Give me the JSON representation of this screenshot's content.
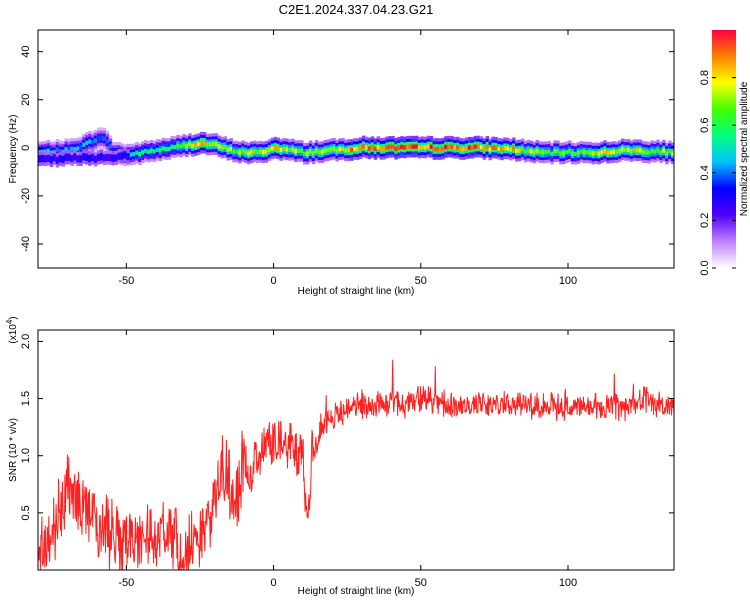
{
  "chart_data": [
    {
      "type": "heatmap",
      "title": "C2E1.2024.337.04.23.G21",
      "xlabel": "Height of straight line (km)",
      "ylabel": "Frequency (Hz)",
      "xlim": [
        -80,
        136
      ],
      "ylim": [
        -50,
        49
      ],
      "xticks": [
        -50,
        0,
        50,
        100
      ],
      "yticks": [
        -40,
        -20,
        0,
        20,
        40
      ],
      "colorbar": {
        "label": "Normalized spectral amplitude",
        "range": [
          0,
          1
        ],
        "ticks": [
          "0.0",
          "0.2",
          "0.4",
          "0.6",
          "0.8"
        ],
        "colors": [
          "#ffffff",
          "#c080ff",
          "#5000ff",
          "#0000ff",
          "#00c0ff",
          "#00ff80",
          "#40ff00",
          "#ffff00",
          "#ff8000",
          "#ff0040"
        ]
      },
      "ridge": {
        "x": [
          -80,
          -70,
          -65,
          -60,
          -57,
          -55,
          -50,
          -45,
          -40,
          -35,
          -30,
          -25,
          -20,
          -15,
          -10,
          -5,
          0,
          5,
          10,
          20,
          30,
          40,
          50,
          60,
          70,
          80,
          90,
          100,
          110,
          120,
          136
        ],
        "frequency": [
          -2,
          -1,
          1,
          4,
          3,
          -2,
          -3,
          -2,
          -1,
          0,
          1,
          2,
          1,
          -1,
          -2,
          -2,
          0,
          -1,
          -2,
          -1,
          0,
          0,
          0,
          0,
          0,
          -0.5,
          -2,
          -2,
          -2,
          -1,
          -2
        ],
        "amplitude": [
          0.5,
          0.45,
          0.45,
          0.4,
          0.4,
          0.45,
          0.55,
          0.55,
          0.6,
          0.6,
          0.75,
          0.8,
          0.7,
          0.7,
          0.75,
          0.75,
          0.8,
          0.75,
          0.7,
          0.8,
          0.9,
          0.95,
          0.95,
          0.95,
          0.9,
          0.85,
          0.65,
          0.65,
          0.75,
          0.8,
          0.7
        ]
      }
    },
    {
      "type": "line",
      "xlabel": "Height of straight line (km)",
      "ylabel": "SNR (10 * v/v)",
      "scale_label": "(x10",
      "scale_exp": "4",
      "scale_close": ")",
      "xlim": [
        -80,
        136
      ],
      "ylim": [
        0,
        2.1
      ],
      "xticks": [
        -50,
        0,
        50,
        100
      ],
      "yticks": [
        "0.5",
        "1.0",
        "1.5",
        "2.0"
      ],
      "color": "#ff2020",
      "series": [
        {
          "x": [
            -80,
            -78,
            -75,
            -72,
            -70,
            -68,
            -65,
            -62,
            -60,
            -57,
            -55,
            -52,
            -50,
            -47,
            -45,
            -42,
            -40,
            -37,
            -35,
            -32,
            -30,
            -27,
            -25,
            -22,
            -20,
            -18,
            -16,
            -14,
            -12,
            -10,
            -8,
            -6,
            -4,
            -2,
            0,
            2,
            4,
            6,
            8,
            10,
            11,
            12,
            13,
            14,
            16,
            18,
            20,
            25,
            30,
            35,
            40,
            45,
            50,
            60,
            70,
            80,
            90,
            100,
            110,
            120,
            125,
            128,
            130,
            133,
            136
          ],
          "y": [
            0.05,
            0.2,
            0.3,
            0.55,
            0.8,
            0.65,
            0.55,
            0.5,
            0.4,
            0.35,
            0.3,
            0.25,
            0.25,
            0.3,
            0.25,
            0.3,
            0.3,
            0.25,
            0.25,
            0.2,
            0.1,
            0.3,
            0.35,
            0.5,
            0.6,
            0.85,
            0.9,
            0.6,
            0.7,
            0.95,
            0.8,
            0.95,
            1.05,
            1.1,
            1.1,
            1.15,
            1.1,
            1.1,
            1.0,
            1.0,
            0.5,
            0.45,
            1.0,
            1.1,
            1.25,
            1.3,
            1.35,
            1.4,
            1.45,
            1.45,
            1.45,
            1.45,
            1.5,
            1.45,
            1.45,
            1.45,
            1.45,
            1.42,
            1.42,
            1.42,
            1.48,
            1.5,
            1.45,
            1.42,
            1.45
          ]
        }
      ]
    }
  ]
}
